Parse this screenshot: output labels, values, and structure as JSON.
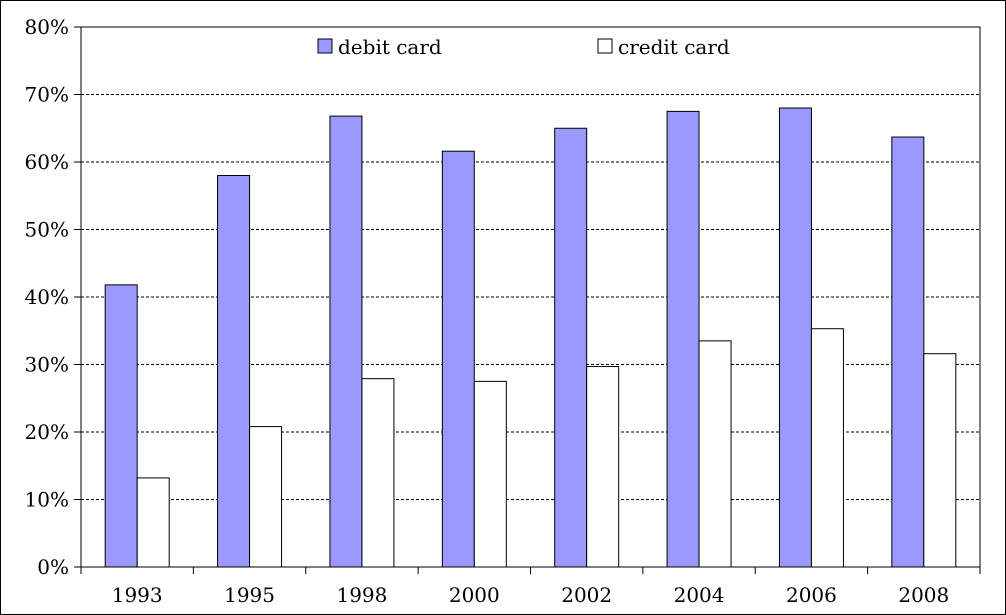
{
  "chart_data": {
    "type": "bar",
    "categories": [
      "1993",
      "1995",
      "1998",
      "2000",
      "2002",
      "2004",
      "2006",
      "2008"
    ],
    "series": [
      {
        "name": "debit card",
        "color": "#9999ff",
        "values": [
          41.8,
          58.0,
          66.8,
          61.6,
          65.0,
          67.5,
          68.0,
          63.7
        ]
      },
      {
        "name": "credit card",
        "color": "#ffffff",
        "values": [
          13.2,
          20.8,
          27.9,
          27.5,
          29.7,
          33.5,
          35.3,
          31.6
        ]
      }
    ],
    "title": "",
    "xlabel": "",
    "ylabel": "",
    "ylim": [
      0,
      80
    ],
    "yticks": [
      0,
      10,
      20,
      30,
      40,
      50,
      60,
      70,
      80
    ],
    "ytick_labels": [
      "0%",
      "10%",
      "20%",
      "30%",
      "40%",
      "50%",
      "60%",
      "70%",
      "80%"
    ],
    "grid": "horizontal dashed",
    "legend_position": "top"
  }
}
